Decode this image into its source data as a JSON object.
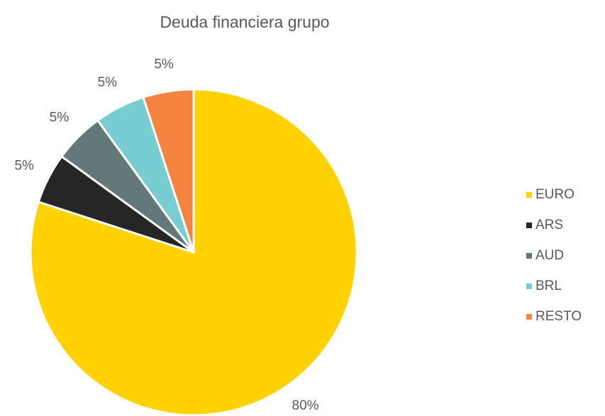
{
  "chart_data": {
    "type": "pie",
    "title": "Deuda financiera grupo",
    "categories": [
      "EURO",
      "ARS",
      "AUD",
      "BRL",
      "RESTO"
    ],
    "values": [
      80,
      5,
      5,
      5,
      5
    ],
    "value_labels": [
      "80%",
      "5%",
      "5%",
      "5%",
      "5%"
    ],
    "colors": [
      "#FFD200",
      "#262626",
      "#637878",
      "#78CDD2",
      "#F4843F"
    ],
    "legend": "right"
  }
}
